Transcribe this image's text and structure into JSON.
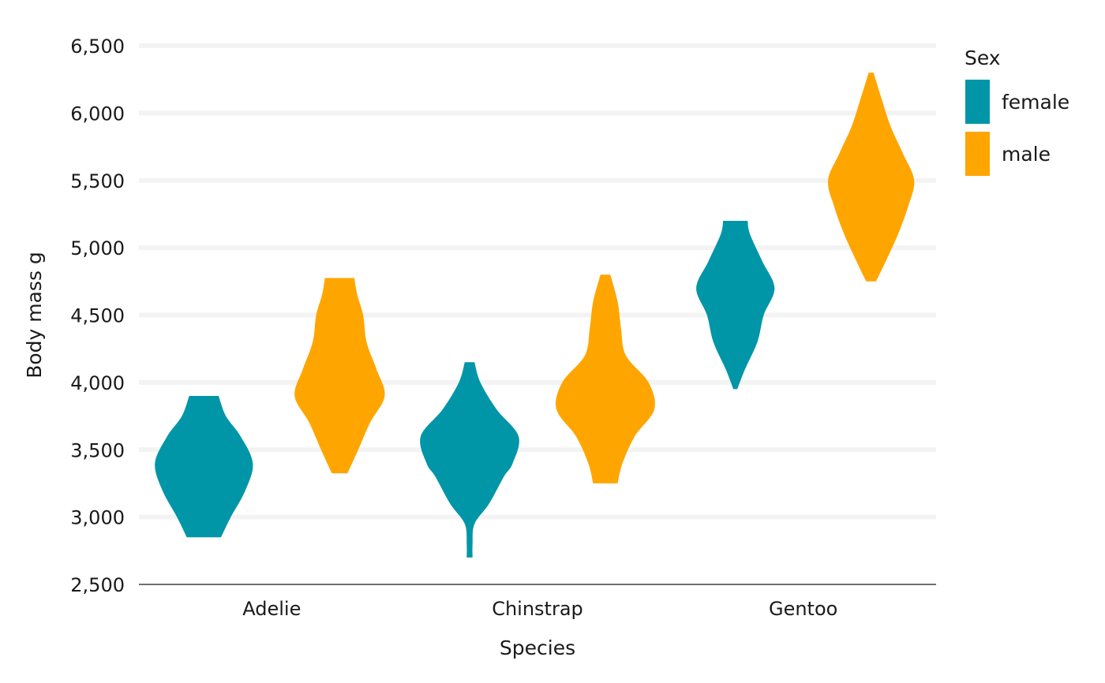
{
  "chart_data": {
    "type": "violin",
    "xlabel": "Species",
    "ylabel": "Body mass g",
    "ylim": [
      2500,
      6500
    ],
    "y_ticks": [
      2500,
      3000,
      3500,
      4000,
      4500,
      5000,
      5500,
      6000,
      6500
    ],
    "y_tick_labels": [
      "2,500",
      "3,000",
      "3,500",
      "4,000",
      "4,500",
      "5,000",
      "5,500",
      "6,000",
      "6,500"
    ],
    "categories": [
      "Adelie",
      "Chinstrap",
      "Gentoo"
    ],
    "grid": "horizontal",
    "legend": {
      "title": "Sex",
      "position": "right",
      "entries": [
        {
          "label": "female",
          "color": "#0096A7"
        },
        {
          "label": "male",
          "color": "#FFA500"
        }
      ]
    },
    "series": [
      {
        "name": "female",
        "color": "#0096A7",
        "violins": [
          {
            "category": "Adelie",
            "profile": [
              [
                2850,
                0.35
              ],
              [
                3000,
                0.55
              ],
              [
                3200,
                0.85
              ],
              [
                3400,
                1.0
              ],
              [
                3600,
                0.75
              ],
              [
                3750,
                0.45
              ],
              [
                3900,
                0.3
              ]
            ]
          },
          {
            "category": "Chinstrap",
            "profile": [
              [
                2700,
                0.06
              ],
              [
                2800,
                0.06
              ],
              [
                2950,
                0.1
              ],
              [
                3100,
                0.4
              ],
              [
                3300,
                0.7
              ],
              [
                3400,
                0.88
              ],
              [
                3600,
                1.0
              ],
              [
                3800,
                0.55
              ],
              [
                4000,
                0.22
              ],
              [
                4150,
                0.1
              ]
            ]
          },
          {
            "category": "Gentoo",
            "profile": [
              [
                3950,
                0.04
              ],
              [
                4100,
                0.2
              ],
              [
                4300,
                0.45
              ],
              [
                4500,
                0.58
              ],
              [
                4700,
                0.8
              ],
              [
                4900,
                0.55
              ],
              [
                5100,
                0.3
              ],
              [
                5200,
                0.25
              ]
            ]
          }
        ]
      },
      {
        "name": "male",
        "color": "#FFA500",
        "violins": [
          {
            "category": "Adelie",
            "profile": [
              [
                3325,
                0.16
              ],
              [
                3500,
                0.38
              ],
              [
                3700,
                0.62
              ],
              [
                3900,
                0.92
              ],
              [
                4100,
                0.75
              ],
              [
                4300,
                0.55
              ],
              [
                4500,
                0.48
              ],
              [
                4650,
                0.36
              ],
              [
                4775,
                0.3
              ]
            ]
          },
          {
            "category": "Chinstrap",
            "profile": [
              [
                3250,
                0.25
              ],
              [
                3400,
                0.35
              ],
              [
                3600,
                0.6
              ],
              [
                3800,
                1.0
              ],
              [
                4000,
                0.88
              ],
              [
                4200,
                0.42
              ],
              [
                4400,
                0.32
              ],
              [
                4600,
                0.25
              ],
              [
                4800,
                0.1
              ]
            ]
          },
          {
            "category": "Gentoo",
            "profile": [
              [
                4750,
                0.1
              ],
              [
                4900,
                0.3
              ],
              [
                5100,
                0.55
              ],
              [
                5300,
                0.75
              ],
              [
                5500,
                0.88
              ],
              [
                5700,
                0.65
              ],
              [
                5900,
                0.4
              ],
              [
                6100,
                0.22
              ],
              [
                6300,
                0.05
              ]
            ]
          }
        ]
      }
    ]
  }
}
